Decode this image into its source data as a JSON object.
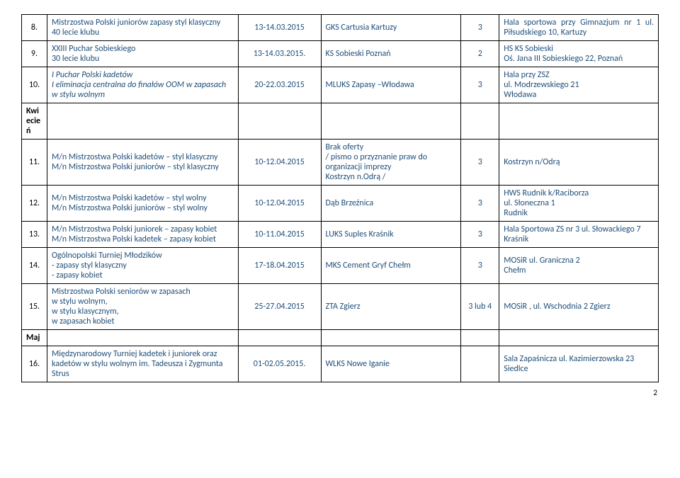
{
  "rows": [
    {
      "num": "8.",
      "event": "Mistrzostwa Polski juniorów zapasy styl klasyczny\n40 lecie klubu",
      "date": "13-14.03.2015",
      "org": "GKS Cartusia Kartuzy",
      "cnt": "3",
      "loc": "Hala sportowa przy Gimnazjum nr 1 ul. Piłsudskiego 10, Kartuzy",
      "locJustify": true
    },
    {
      "num": "9.",
      "event": "XXIII Puchar Sobieskiego\n30 lecie klubu",
      "date": "13-14.03.2015.",
      "org": "KS Sobieski Poznań",
      "cnt": "2",
      "loc": "HS KS Sobieski\nOś. Jana III Sobieskiego 22, Poznań"
    },
    {
      "num": "10.",
      "event": "I Puchar Polski kadetów\nI eliminacja centralna do finałów OOM w zapasach w stylu wolnym",
      "eventItalic": true,
      "date": "20-22.03.2015",
      "org": "MLUKS Zapasy –Włodawa",
      "cnt": "3",
      "loc": "Hala przy ZSZ\nul. Modrzewskiego 21\nWłodawa"
    },
    {
      "section": "Kwiecień"
    },
    {
      "num": "11.",
      "event": "M/n Mistrzostwa Polski kadetów – styl klasyczny\nM/n Mistrzostwa Polski juniorów – styl klasyczny",
      "date": "10-12.04.2015",
      "org": "Brak oferty\n/ pismo  o przyznanie praw do organizacji imprezy\nKostrzyn n.Odrą /",
      "cnt": "3",
      "loc": "Kostrzyn n/Odrą"
    },
    {
      "num": "12.",
      "event": "M/n Mistrzostwa Polski kadetów – styl wolny\nM/n Mistrzostwa Polski juniorów – styl wolny",
      "date": "10-12.04.2015",
      "org": "Dąb Brzeźnica",
      "cnt": "3",
      "loc": "HWS Rudnik  k/Raciborza\nul. Słoneczna 1\nRudnik"
    },
    {
      "num": "13.",
      "event": "M/n Mistrzostwa Polski juniorek – zapasy kobiet\nM/n Mistrzostwa Polski kadetek – zapasy kobiet",
      "date": "10-11.04.2015",
      "org": "LUKS Suples Kraśnik",
      "cnt": "3",
      "loc": "Hala Sportowa ZS  nr 3 ul. Słowackiego 7\n Kraśnik"
    },
    {
      "num": "14.",
      "event": "Ogólnopolski Turniej Młodzików\n- zapasy styl klasyczny\n- zapasy kobiet",
      "date": "17-18.04.2015",
      "org": "MKS Cement Gryf Chełm",
      "cnt": "3",
      "loc": "MOSiR ul. Graniczna 2\nChełm"
    },
    {
      "num": "15.",
      "event": "Mistrzostwa Polski seniorów w zapasach\nw stylu wolnym,\nw stylu klasycznym,\nw zapasach kobiet",
      "date": "25-27.04.2015",
      "org": "ZTA  Zgierz",
      "cnt": "3 lub 4",
      "loc": "MOSiR , ul. Wschodnia 2 Zgierz"
    },
    {
      "section": "Maj"
    },
    {
      "num": "16.",
      "event": "Międzynarodowy  Turniej kadetek i juniorek oraz kadetów w stylu wolnym im. Tadeusza i Zygmunta Strus",
      "date": "01-02.05.2015.",
      "org": "WLKS Nowe Iganie",
      "cnt": "",
      "loc": "Sala Zapaśnicza ul. Kazimierzowska 23\nSiedlce"
    }
  ],
  "pageNumber": "2"
}
